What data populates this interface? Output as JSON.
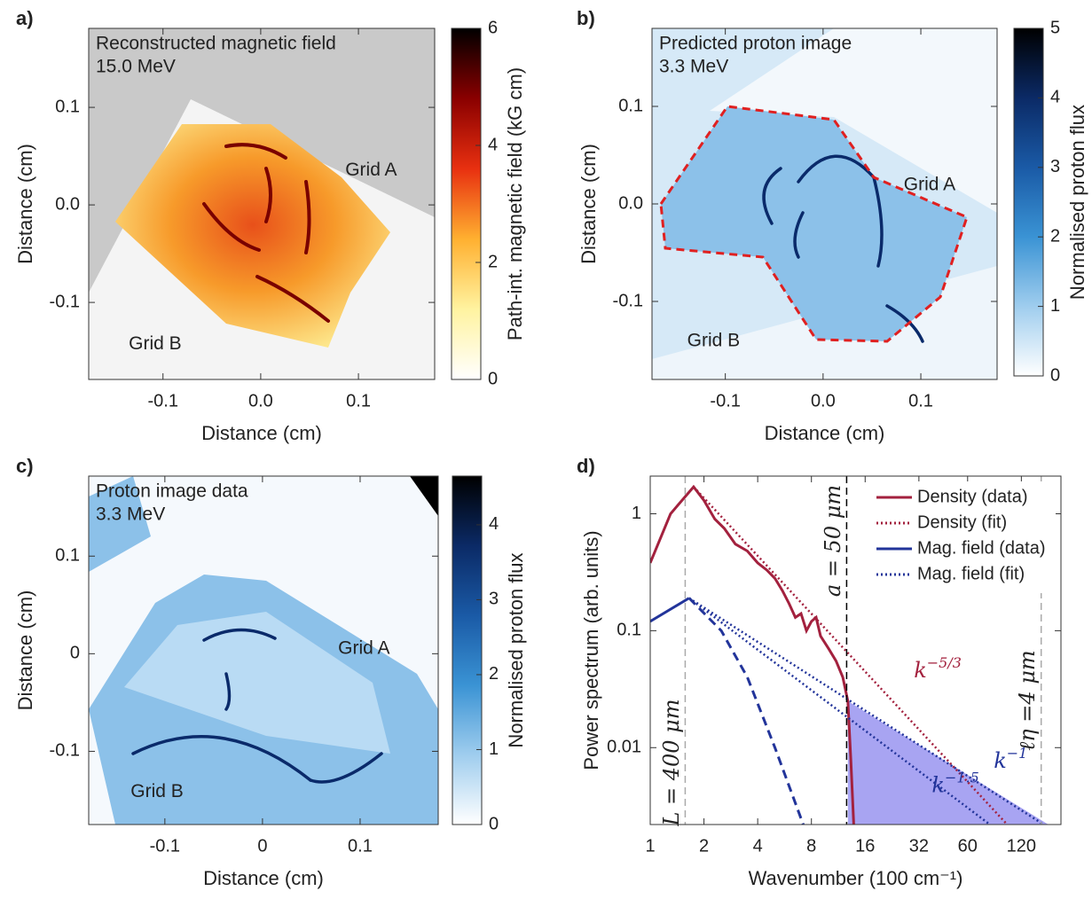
{
  "chart_data": [
    {
      "type": "image",
      "panel": "a)",
      "title": "Reconstructed magnetic field",
      "subtitle": "15.0 MeV",
      "xlabel": "Distance (cm)",
      "ylabel": "Distance (cm)",
      "xlim": [
        -0.176,
        0.178
      ],
      "ylim": [
        -0.179,
        0.181
      ],
      "xticks": [
        -0.1,
        {
          "value": 0,
          "label": "0.0"
        },
        0.1
      ],
      "yticks": [
        -0.1,
        {
          "value": 0,
          "label": "0.0"
        },
        0.1
      ],
      "annotations": [
        {
          "text": "Grid A",
          "x": 0.113,
          "y": 0.035
        },
        {
          "text": "Grid B",
          "x": -0.108,
          "y": -0.143
        }
      ],
      "colorbar": {
        "label": "Path-int. magnetic field (kG cm)",
        "lim": [
          0,
          6
        ],
        "ticks": [
          0,
          2,
          4,
          6
        ],
        "colors": [
          "#ffffff",
          "#fff3a0",
          "#ffb030",
          "#e83010",
          "#8a0000",
          "#000000"
        ]
      }
    },
    {
      "type": "image",
      "panel": "b)",
      "title": "Predicted proton image",
      "subtitle": "3.3 MeV",
      "xlabel": "Distance (cm)",
      "ylabel": "Distance (cm)",
      "xlim": [
        -0.175,
        0.178
      ],
      "ylim": [
        -0.18,
        0.18
      ],
      "xticks": [
        -0.1,
        {
          "value": 0,
          "label": "0.0"
        },
        0.1
      ],
      "yticks": [
        -0.1,
        {
          "value": 0,
          "label": "0.0"
        },
        0.1
      ],
      "annotations": [
        {
          "text": "Grid A",
          "x": 0.109,
          "y": 0.019
        },
        {
          "text": "Grid B",
          "x": -0.112,
          "y": -0.141
        }
      ],
      "colorbar": {
        "label": "Normalised proton flux",
        "lim": [
          0,
          5
        ],
        "ticks": [
          0,
          1,
          2,
          3,
          4,
          5
        ],
        "colors": [
          "#ffffff",
          "#9fcdee",
          "#3a93d4",
          "#1a5aa6",
          "#0b2a66",
          "#000000"
        ]
      }
    },
    {
      "type": "image",
      "panel": "c)",
      "title": "Proton image data",
      "subtitle": "3.3 MeV",
      "xlabel": "Distance (cm)",
      "ylabel": "Distance (cm)",
      "xlim": [
        -0.178,
        0.18
      ],
      "ylim": [
        -0.175,
        0.182
      ],
      "xticks": [
        -0.1,
        0,
        0.1
      ],
      "yticks": [
        -0.1,
        0,
        0.1
      ],
      "annotations": [
        {
          "text": "Grid A",
          "x": 0.104,
          "y": 0.005
        },
        {
          "text": "Grid B",
          "x": -0.108,
          "y": -0.142
        }
      ],
      "colorbar": {
        "label": "Normalised proton flux",
        "lim": [
          0,
          4.65
        ],
        "ticks": [
          0,
          1,
          2,
          3,
          4
        ],
        "colors": [
          "#ffffff",
          "#9fcdee",
          "#3a93d4",
          "#1a5aa6",
          "#0b2a66",
          "#000000"
        ]
      }
    },
    {
      "type": "line",
      "panel": "d)",
      "xlabel": "Wavenumber (100 cm⁻¹)",
      "ylabel": "Power spectrum (arb. units)",
      "xscale": "log",
      "yscale": "log",
      "xlim": [
        1,
        200
      ],
      "ylim": [
        0.0022,
        2.1
      ],
      "xticks": [
        1,
        2,
        4,
        8,
        16,
        32,
        60,
        120
      ],
      "yticks": [
        0.01,
        0.1,
        1
      ],
      "legend": "upper right",
      "series": [
        {
          "style": "area",
          "color": "#a8a4f2",
          "x": [
            12.8,
            170,
            12.8
          ],
          "values": [
            0.025,
            0.0022,
            0.0022
          ]
        },
        {
          "name": "Density (data)",
          "color": "#a3213e",
          "style": "solid",
          "x": [
            1,
            1.3,
            1.75,
            2,
            2.3,
            2.6,
            3,
            3.5,
            4,
            4.5,
            5,
            5.5,
            6,
            6.5,
            7,
            7.5,
            8,
            8.5,
            9,
            10,
            11,
            12,
            12.8,
            13.3,
            13.8
          ],
          "values": [
            0.38,
            1.0,
            1.7,
            1.3,
            0.9,
            0.75,
            0.55,
            0.48,
            0.38,
            0.33,
            0.28,
            0.22,
            0.17,
            0.13,
            0.14,
            0.1,
            0.12,
            0.13,
            0.09,
            0.07,
            0.055,
            0.04,
            0.025,
            0.008,
            0.0022
          ]
        },
        {
          "name": "Density (fit)",
          "color": "#a3213e",
          "style": "dotted",
          "x": [
            1.75,
            100
          ],
          "values": [
            1.7,
            0.0022
          ]
        },
        {
          "name": "Mag. field (data)",
          "color": "#22349a",
          "style": "solid",
          "x": [
            1,
            1.65
          ],
          "values": [
            0.12,
            0.19
          ]
        },
        {
          "name": "Mag. field (fit)",
          "color": "#22349a",
          "style": "dotted",
          "x": [
            1.65,
            160,
            1.65,
            1.65,
            80
          ],
          "values": [
            0.19,
            0.0022,
            null,
            0.19,
            0.0022
          ]
        },
        {
          "color": "#22349a",
          "style": "dashed",
          "x": [
            1.65,
            2.5,
            3.5,
            5,
            7.2
          ],
          "values": [
            0.19,
            0.1,
            0.04,
            0.01,
            0.0022
          ]
        }
      ],
      "vlines": [
        {
          "x": 1.57,
          "label": "L = 400 μm",
          "color": "#aaaaaa"
        },
        {
          "x": 12.6,
          "label": "a = 50 μm",
          "color": "#000000"
        },
        {
          "x": 155,
          "label": "ℓη =4 μm",
          "color": "#aaaaaa"
        }
      ],
      "annotations": [
        {
          "text": "k",
          "sup": "−5/3",
          "x": 30,
          "y": 0.045,
          "color": "#a3213e"
        },
        {
          "text": "k",
          "sup": "−1",
          "x": 84,
          "y": 0.0076,
          "color": "#22349a"
        },
        {
          "text": "k",
          "sup": "−1.5",
          "x": 37.8,
          "y": 0.0047,
          "color": "#22349a"
        }
      ]
    }
  ]
}
